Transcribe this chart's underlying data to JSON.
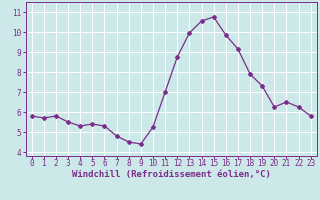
{
  "x": [
    0,
    1,
    2,
    3,
    4,
    5,
    6,
    7,
    8,
    9,
    10,
    11,
    12,
    13,
    14,
    15,
    16,
    17,
    18,
    19,
    20,
    21,
    22,
    23
  ],
  "y": [
    5.8,
    5.7,
    5.8,
    5.5,
    5.3,
    5.4,
    5.3,
    4.8,
    4.5,
    4.4,
    5.25,
    7.0,
    8.75,
    9.95,
    10.55,
    10.75,
    9.85,
    9.15,
    7.9,
    7.3,
    6.25,
    6.5,
    6.25,
    5.8
  ],
  "line_color": "#7b2d8b",
  "marker": "D",
  "marker_size": 2.0,
  "bg_color": "#cce8e8",
  "grid_color": "#ffffff",
  "xlabel": "Windchill (Refroidissement éolien,°C)",
  "ylim": [
    3.8,
    11.5
  ],
  "xlim": [
    -0.5,
    23.5
  ],
  "yticks": [
    4,
    5,
    6,
    7,
    8,
    9,
    10,
    11
  ],
  "xticks": [
    0,
    1,
    2,
    3,
    4,
    5,
    6,
    7,
    8,
    9,
    10,
    11,
    12,
    13,
    14,
    15,
    16,
    17,
    18,
    19,
    20,
    21,
    22,
    23
  ],
  "tick_fontsize": 5.5,
  "xlabel_fontsize": 6.5
}
